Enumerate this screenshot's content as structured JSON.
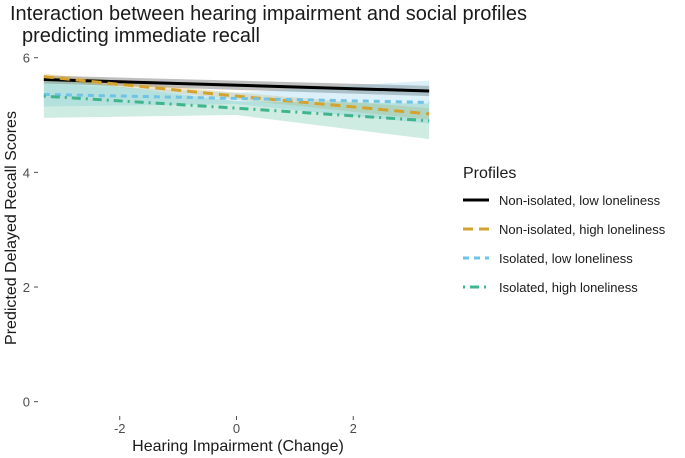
{
  "chart_data": {
    "type": "line",
    "title_lines": [
      "Interaction between hearing impairment and social profiles",
      "predicting immediate recall"
    ],
    "xlabel": "Hearing Impairment (Change)",
    "ylabel": "Predicted Delayed Recall Scores",
    "xlim": [
      -3.4,
      3.4
    ],
    "ylim": [
      -0.25,
      6.1
    ],
    "x_ticks": [
      -2,
      0,
      2
    ],
    "y_ticks": [
      0,
      2,
      4,
      6
    ],
    "grid": false,
    "legend": {
      "title": "Profiles",
      "placement": "right"
    },
    "series": [
      {
        "name": "Non-isolated, low loneliness",
        "color": "#000000",
        "dash": "solid",
        "x": [
          -3.3,
          3.3
        ],
        "y": [
          5.62,
          5.42
        ],
        "ci_lower": [
          5.55,
          5.33
        ],
        "ci_upper": [
          5.69,
          5.51
        ]
      },
      {
        "name": "Non-isolated, high loneliness",
        "color": "#d4a22e",
        "dash": "dashed",
        "x": [
          -3.3,
          0,
          3.3
        ],
        "y": [
          5.67,
          5.33,
          5.02
        ],
        "ci_lower": [
          5.62,
          5.27,
          4.92
        ],
        "ci_upper": [
          5.72,
          5.39,
          5.12
        ]
      },
      {
        "name": "Isolated, low loneliness",
        "color": "#6ec3e6",
        "dash": "dotted",
        "x": [
          -3.3,
          0,
          3.3
        ],
        "y": [
          5.36,
          5.29,
          5.22
        ],
        "ci_lower": [
          5.15,
          5.19,
          4.85
        ],
        "ci_upper": [
          5.55,
          5.39,
          5.6
        ]
      },
      {
        "name": "Isolated, high loneliness",
        "color": "#3fb58b",
        "dash": "dotdash",
        "x": [
          -3.3,
          0,
          3.3
        ],
        "y": [
          5.33,
          5.12,
          4.9
        ],
        "ci_lower": [
          4.95,
          5.0,
          4.58
        ],
        "ci_upper": [
          5.66,
          5.24,
          5.2
        ]
      }
    ]
  }
}
